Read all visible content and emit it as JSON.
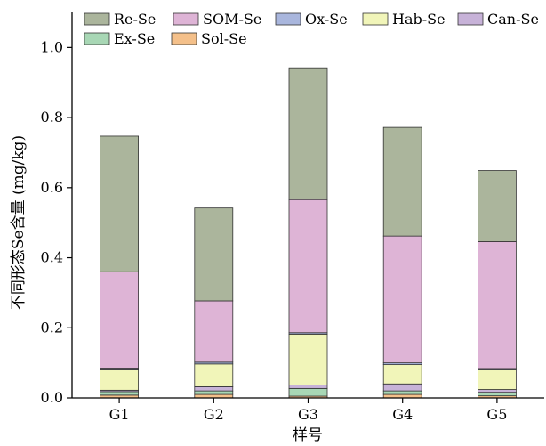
{
  "chart_data": {
    "type": "bar",
    "stacked": true,
    "xlabel": "样号",
    "ylabel": "不同形态Se含量 (mg/kg)",
    "ylim": [
      0,
      1.1
    ],
    "yticks": [
      "0.0",
      "0.2",
      "0.4",
      "0.6",
      "0.8",
      "1.0"
    ],
    "grid": false,
    "legend": "top",
    "categories": [
      "G1",
      "G2",
      "G3",
      "G4",
      "G5"
    ],
    "series": [
      {
        "name": "Sol-Se",
        "color": "#f4c08a",
        "values": [
          0.008,
          0.01,
          0.005,
          0.01,
          0.006
        ]
      },
      {
        "name": "Ex-Se",
        "color": "#a8d7b5",
        "values": [
          0.01,
          0.01,
          0.022,
          0.01,
          0.01
        ]
      },
      {
        "name": "Can-Se",
        "color": "#c7b2d8",
        "values": [
          0.004,
          0.012,
          0.01,
          0.02,
          0.008
        ]
      },
      {
        "name": "Hab-Se",
        "color": "#f1f5b9",
        "values": [
          0.058,
          0.065,
          0.145,
          0.055,
          0.056
        ]
      },
      {
        "name": "Ox-Se",
        "color": "#a9b6dd",
        "values": [
          0.005,
          0.005,
          0.004,
          0.005,
          0.004
        ]
      },
      {
        "name": "SOM-Se",
        "color": "#deb4d6",
        "values": [
          0.275,
          0.175,
          0.38,
          0.362,
          0.362
        ]
      },
      {
        "name": "Re-Se",
        "color": "#abb59c",
        "values": [
          0.387,
          0.265,
          0.376,
          0.31,
          0.203
        ]
      }
    ],
    "legend_order": [
      "Re-Se",
      "SOM-Se",
      "Ox-Se",
      "Hab-Se",
      "Can-Se",
      "Ex-Se",
      "Sol-Se"
    ]
  }
}
